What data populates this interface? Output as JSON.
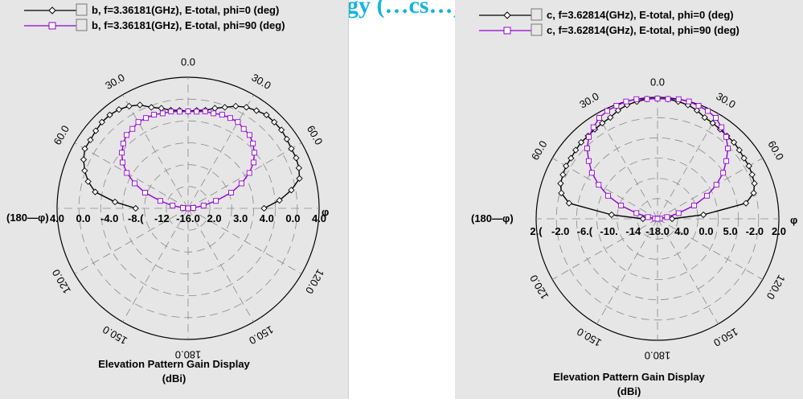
{
  "header_fragment": "gy (…cs…)",
  "chart_data": [
    {
      "type": "polar",
      "subtype": "elevation-pattern",
      "caption_line1": "Elevation Pattern Gain Display",
      "caption_line2": "(dBi)",
      "left_axis_label": "(180—φ)",
      "right_axis_label": "φ",
      "angle_labels": {
        "top": "0.0",
        "upper_left": "30.0",
        "upper_right": "30.0",
        "mid_left": "60.0",
        "mid_right": "60.0",
        "low_left": "120.0",
        "low_right": "120.0",
        "bottom_left": "150.0",
        "bottom_right": "150.0",
        "bottom": "180.0"
      },
      "radial_tick_labels": [
        "4.0",
        "0.0",
        "-4.0",
        "-8.(",
        "-12",
        "-16.0",
        "2.0",
        "3.0",
        "4.0",
        "0.0",
        "4.0"
      ],
      "series": [
        {
          "name": "b, f=3.36181(GHz), E-total, phi=0 (deg)",
          "color": "#000000",
          "marker": "diamond",
          "theta": [
            -90,
            -85,
            -80,
            -75,
            -70,
            -65,
            -60,
            -55,
            -50,
            -45,
            -40,
            -35,
            -30,
            -25,
            -20,
            -15,
            -10,
            -5,
            0,
            5,
            10,
            15,
            20,
            25,
            30,
            35,
            40,
            45,
            50,
            55,
            60,
            65,
            70,
            75,
            80,
            85,
            90
          ],
          "r": [
            0.4,
            0.56,
            0.72,
            0.79,
            0.84,
            0.88,
            0.91,
            0.91,
            0.92,
            0.93,
            0.93,
            0.92,
            0.9,
            0.87,
            0.82,
            0.79,
            0.76,
            0.75,
            0.74,
            0.75,
            0.76,
            0.79,
            0.82,
            0.86,
            0.89,
            0.91,
            0.93,
            0.93,
            0.93,
            0.92,
            0.91,
            0.91,
            0.9,
            0.88,
            0.8,
            0.7,
            0.58
          ]
        },
        {
          "name": "b, f=3.36181(GHz), E-total, phi=90 (deg)",
          "color": "#9400d3",
          "marker": "square",
          "theta": [
            -90,
            -85,
            -80,
            -75,
            -70,
            -65,
            -60,
            -55,
            -50,
            -45,
            -40,
            -35,
            -30,
            -25,
            -20,
            -15,
            -10,
            -5,
            0,
            5,
            10,
            15,
            20,
            25,
            30,
            35,
            40,
            45,
            50,
            55,
            60,
            65,
            70,
            75,
            80,
            85,
            90
          ],
          "r": [
            0.0,
            0.04,
            0.12,
            0.22,
            0.35,
            0.45,
            0.54,
            0.61,
            0.66,
            0.7,
            0.73,
            0.74,
            0.76,
            0.76,
            0.76,
            0.75,
            0.75,
            0.74,
            0.74,
            0.74,
            0.75,
            0.75,
            0.76,
            0.76,
            0.76,
            0.74,
            0.73,
            0.7,
            0.66,
            0.61,
            0.54,
            0.45,
            0.35,
            0.22,
            0.12,
            0.04,
            0.0
          ]
        }
      ]
    },
    {
      "type": "polar",
      "subtype": "elevation-pattern",
      "caption_line1": "Elevation Pattern Gain Display",
      "caption_line2": "(dBi)",
      "left_axis_label": "(180—φ)",
      "right_axis_label": "φ",
      "angle_labels": {
        "top": "0.0",
        "upper_left": "30.0",
        "upper_right": "30.0",
        "mid_left": "60.0",
        "mid_right": "60.0",
        "low_left": "120.0",
        "low_right": "120.0",
        "bottom_left": "150.0",
        "bottom_right": "150.0",
        "bottom": "180.0"
      },
      "radial_tick_labels": [
        "2.(",
        "-2.0",
        "-6.(",
        "-10.",
        "-14",
        "-18.0",
        "4.0",
        "0.0",
        "5.0",
        "-2.0",
        "2.0"
      ],
      "series": [
        {
          "name": "c, f=3.62814(GHz), E-total, phi=0 (deg)",
          "color": "#000000",
          "marker": "diamond",
          "theta": [
            -90,
            -85,
            -80,
            -75,
            -70,
            -65,
            -60,
            -55,
            -50,
            -45,
            -40,
            -35,
            -30,
            -25,
            -20,
            -15,
            -10,
            -5,
            0,
            5,
            10,
            15,
            20,
            25,
            30,
            35,
            40,
            45,
            50,
            55,
            60,
            65,
            70,
            75,
            80,
            85,
            90
          ],
          "r": [
            0.12,
            0.38,
            0.74,
            0.82,
            0.85,
            0.86,
            0.87,
            0.87,
            0.88,
            0.89,
            0.89,
            0.9,
            0.91,
            0.92,
            0.95,
            0.97,
            0.98,
            0.99,
            0.99,
            0.99,
            0.98,
            0.97,
            0.95,
            0.92,
            0.91,
            0.9,
            0.89,
            0.89,
            0.88,
            0.87,
            0.87,
            0.86,
            0.85,
            0.82,
            0.74,
            0.38,
            0.12
          ]
        },
        {
          "name": "c, f=3.62814(GHz), E-total, phi=90 (deg)",
          "color": "#9400d3",
          "marker": "square",
          "theta": [
            -90,
            -85,
            -80,
            -75,
            -70,
            -65,
            -60,
            -55,
            -50,
            -45,
            -40,
            -35,
            -30,
            -25,
            -20,
            -15,
            -10,
            -5,
            0,
            5,
            10,
            15,
            20,
            25,
            30,
            35,
            40,
            45,
            50,
            55,
            60,
            65,
            70,
            75,
            80,
            85,
            90
          ],
          "r": [
            0.0,
            0.02,
            0.08,
            0.18,
            0.32,
            0.45,
            0.56,
            0.66,
            0.74,
            0.82,
            0.88,
            0.92,
            0.96,
            0.98,
            0.99,
            1.0,
            1.0,
            0.99,
            0.99,
            0.99,
            1.0,
            1.0,
            0.99,
            0.98,
            0.96,
            0.92,
            0.88,
            0.82,
            0.74,
            0.66,
            0.56,
            0.45,
            0.32,
            0.18,
            0.08,
            0.02,
            0.0
          ]
        }
      ]
    }
  ]
}
